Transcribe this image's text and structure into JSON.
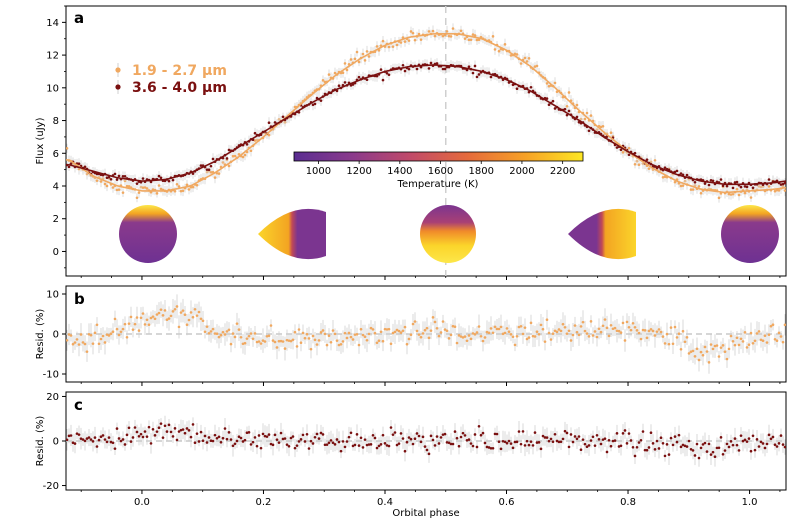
{
  "chart_data": [
    {
      "panel": "a",
      "type": "scatter",
      "ylabel": "Flux (uJy)",
      "ylim": [
        -1.5,
        15
      ],
      "yticks": [
        0,
        2,
        4,
        6,
        8,
        10,
        12,
        14
      ],
      "xlim": [
        -0.125,
        1.06
      ],
      "vline_x": 0.5,
      "legend_placement": "top-left",
      "series": [
        {
          "name": "1.9 - 2.7 μm",
          "color": "#f0a860",
          "model": {
            "x": [
              -0.12,
              -0.08,
              -0.04,
              0.0,
              0.04,
              0.08,
              0.12,
              0.16,
              0.2,
              0.24,
              0.28,
              0.32,
              0.36,
              0.4,
              0.44,
              0.48,
              0.52,
              0.56,
              0.6,
              0.64,
              0.68,
              0.72,
              0.76,
              0.8,
              0.84,
              0.88,
              0.92,
              0.96,
              1.0,
              1.04,
              1.06
            ],
            "y": [
              5.6,
              4.6,
              4.0,
              3.7,
              3.7,
              4.0,
              4.8,
              5.8,
              7.0,
              8.3,
              9.6,
              10.8,
              11.8,
              12.6,
              13.1,
              13.3,
              13.3,
              13.0,
              12.3,
              11.3,
              10.0,
              8.6,
              7.3,
              6.1,
              5.1,
              4.3,
              3.8,
              3.6,
              3.7,
              3.8,
              3.9
            ]
          }
        },
        {
          "name": "3.6 - 4.0 μm",
          "color": "#7a1010",
          "model": {
            "x": [
              -0.12,
              -0.08,
              -0.04,
              0.0,
              0.04,
              0.08,
              0.12,
              0.16,
              0.2,
              0.24,
              0.28,
              0.32,
              0.36,
              0.4,
              0.44,
              0.48,
              0.52,
              0.56,
              0.6,
              0.64,
              0.68,
              0.72,
              0.76,
              0.8,
              0.84,
              0.88,
              0.92,
              0.96,
              1.0,
              1.04,
              1.06
            ],
            "y": [
              5.3,
              4.9,
              4.5,
              4.3,
              4.4,
              4.8,
              5.5,
              6.4,
              7.3,
              8.2,
              9.1,
              9.9,
              10.5,
              11.0,
              11.3,
              11.4,
              11.3,
              11.0,
              10.5,
              9.8,
              8.9,
              8.0,
              7.0,
              6.1,
              5.3,
              4.7,
              4.3,
              4.1,
              4.1,
              4.2,
              4.3
            ]
          }
        }
      ],
      "colorbar": {
        "label": "Temperature (K)",
        "range": [
          880,
          2300
        ],
        "ticks": [
          1000,
          1200,
          1400,
          1600,
          1800,
          2000,
          2200
        ],
        "colormap": "plasma/inferno"
      },
      "phase_maps_at": [
        0.0,
        0.25,
        0.5,
        0.75,
        1.0
      ]
    },
    {
      "panel": "b",
      "type": "scatter",
      "ylabel": "Resid. (%)",
      "ylim": [
        -12,
        12
      ],
      "yticks": [
        -10,
        0,
        10
      ],
      "baseline": 0,
      "series_color": "#f0a860",
      "trend": {
        "x": [
          -0.12,
          -0.06,
          0.0,
          0.04,
          0.08,
          0.1,
          0.12,
          0.2,
          0.3,
          0.4,
          0.5,
          0.6,
          0.7,
          0.8,
          0.88,
          0.9,
          0.92,
          0.96,
          1.0,
          1.06
        ],
        "y": [
          -2,
          0,
          3,
          5,
          5,
          4,
          0,
          -0.5,
          -1,
          0,
          0.5,
          0,
          0.5,
          1.5,
          0,
          -4,
          -5,
          -3,
          -1,
          0
        ]
      }
    },
    {
      "panel": "c",
      "type": "scatter",
      "ylabel": "Resid. (%)",
      "xlabel": "Orbital phase",
      "ylim": [
        -22,
        22
      ],
      "yticks": [
        -20,
        0,
        20
      ],
      "xticks": [
        0.0,
        0.2,
        0.4,
        0.6,
        0.8,
        1.0
      ],
      "baseline": 0,
      "series_color": "#7a1010",
      "trend": {
        "x": [
          -0.12,
          -0.06,
          0.0,
          0.04,
          0.1,
          0.2,
          0.3,
          0.4,
          0.5,
          0.6,
          0.7,
          0.8,
          0.88,
          0.92,
          0.96,
          1.0,
          1.06
        ],
        "y": [
          -1,
          1,
          3,
          4,
          2,
          0,
          0,
          0,
          0.5,
          -0.5,
          0,
          0,
          -2,
          -4,
          -3,
          -1,
          0
        ]
      }
    }
  ],
  "text": {
    "panel_a": "a",
    "panel_b": "b",
    "panel_c": "c",
    "ylabel_a": "Flux (uJy)",
    "ylabel_b": "Resid. (%)",
    "ylabel_c": "Resid. (%)",
    "xlabel": "Orbital phase",
    "legend_1": "1.9 - 2.7 μm",
    "legend_2": "3.6 - 4.0 μm",
    "cbar_label": "Temperature (K)"
  }
}
